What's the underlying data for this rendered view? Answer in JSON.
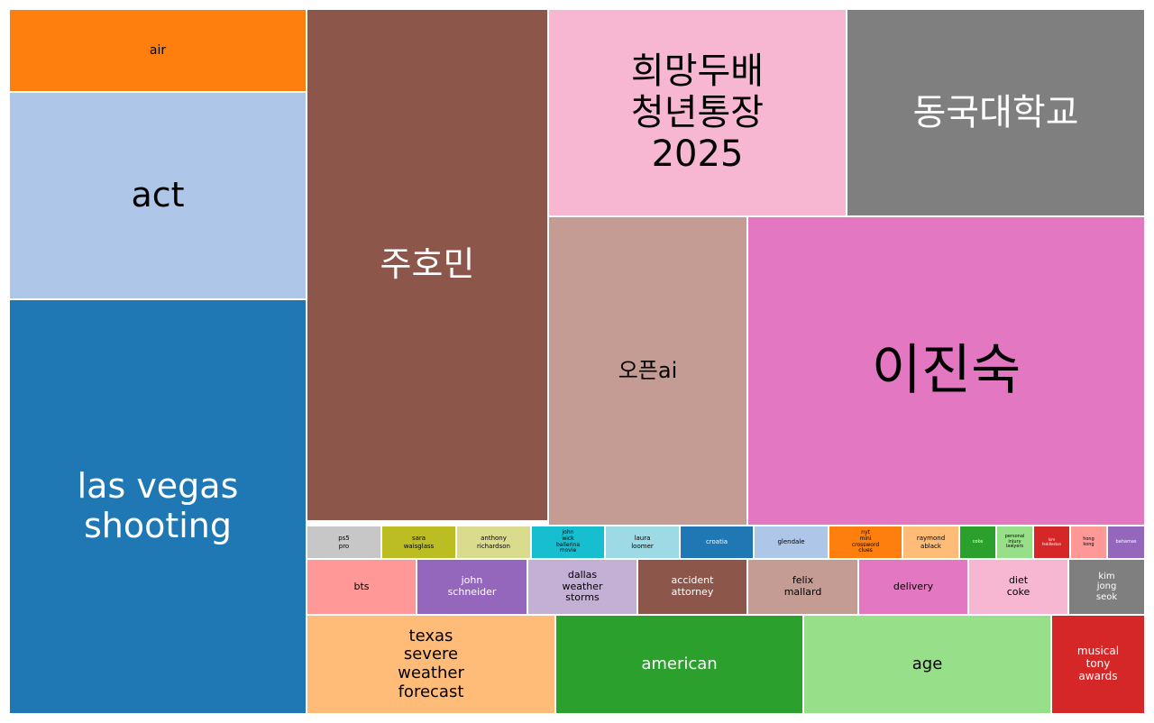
{
  "chart_data": {
    "type": "treemap",
    "title": "",
    "items": [
      {
        "label": "las vegas\nshooting",
        "value": 150.3,
        "color": "#1f77b4",
        "text_color": "#ffffff"
      },
      {
        "label": "act",
        "value": 75.4,
        "color": "#aec7e8",
        "text_color": "#000000"
      },
      {
        "label": "air",
        "value": 30.1,
        "color": "#ff7f0e",
        "text_color": "#000000"
      },
      {
        "label": "주호민",
        "value": 150.9,
        "color": "#8c564b",
        "text_color": "#ffffff"
      },
      {
        "label": "희망두배\n청년통장\n2025",
        "value": 75.9,
        "color": "#f7b6d2",
        "text_color": "#000000"
      },
      {
        "label": "동국대학교",
        "value": 75.6,
        "color": "#7f7f7f",
        "text_color": "#ffffff"
      },
      {
        "label": "오픈ai",
        "value": 75.1,
        "color": "#c49c94",
        "text_color": "#000000"
      },
      {
        "label": "이진숙",
        "value": 145.8,
        "color": "#e377c2",
        "text_color": "#000000"
      },
      {
        "label": "ps5\npro",
        "value": 2.8,
        "color": "#c7c7c7",
        "text_color": "#000000"
      },
      {
        "label": "sara\nwaisglass",
        "value": 2.8,
        "color": "#bcbd22",
        "text_color": "#000000"
      },
      {
        "label": "anthony\nrichardson",
        "value": 2.8,
        "color": "#dbdb8d",
        "text_color": "#000000"
      },
      {
        "label": "john\nwick\nballerina\nmovie",
        "value": 2.8,
        "color": "#17becf",
        "text_color": "#000000"
      },
      {
        "label": "laura\nloomer",
        "value": 2.8,
        "color": "#9edae5",
        "text_color": "#000000"
      },
      {
        "label": "croatia",
        "value": 2.8,
        "color": "#1f77b4",
        "text_color": "#ffffff"
      },
      {
        "label": "glendale",
        "value": 2.8,
        "color": "#aec7e8",
        "text_color": "#000000"
      },
      {
        "label": "nyt\nmini\ncrossword\nclues",
        "value": 2.8,
        "color": "#ff7f0e",
        "text_color": "#000000"
      },
      {
        "label": "raymond\nablack",
        "value": 2.1,
        "color": "#ffbb78",
        "text_color": "#000000"
      },
      {
        "label": "coke",
        "value": 1.4,
        "color": "#2ca02c",
        "text_color": "#ffffff"
      },
      {
        "label": "personal\ninjury\nlawyers",
        "value": 1.4,
        "color": "#98df8a",
        "text_color": "#000000"
      },
      {
        "label": "kim\nfeddleston",
        "value": 1.4,
        "color": "#d62728",
        "text_color": "#ffffff"
      },
      {
        "label": "hong\nkong",
        "value": 1.4,
        "color": "#ff9896",
        "text_color": "#000000"
      },
      {
        "label": "bahamas",
        "value": 1.4,
        "color": "#9467bd",
        "text_color": "#ffffff"
      },
      {
        "label": "bts",
        "value": 7.9,
        "color": "#ff9896",
        "text_color": "#000000"
      },
      {
        "label": "john\nschneider",
        "value": 7.9,
        "color": "#9467bd",
        "text_color": "#ffffff"
      },
      {
        "label": "dallas\nweather\nstorms",
        "value": 7.9,
        "color": "#c5b0d5",
        "text_color": "#000000"
      },
      {
        "label": "accident\nattorney",
        "value": 7.9,
        "color": "#8c564b",
        "text_color": "#ffffff"
      },
      {
        "label": "felix\nmallard",
        "value": 7.9,
        "color": "#c49c94",
        "text_color": "#000000"
      },
      {
        "label": "delivery",
        "value": 7.9,
        "color": "#e377c2",
        "text_color": "#000000"
      },
      {
        "label": "diet\ncoke",
        "value": 7.9,
        "color": "#f7b6d2",
        "text_color": "#000000"
      },
      {
        "label": "kim\njong\nseok",
        "value": 5.6,
        "color": "#7f7f7f",
        "text_color": "#ffffff"
      },
      {
        "label": "texas\nsevere\nweather\nforecast",
        "value": 20.2,
        "color": "#ffbb78",
        "text_color": "#000000"
      },
      {
        "label": "american",
        "value": 20.2,
        "color": "#2ca02c",
        "text_color": "#ffffff"
      },
      {
        "label": "age",
        "value": 20.2,
        "color": "#98df8a",
        "text_color": "#000000"
      },
      {
        "label": "musical\ntony\nawards",
        "value": 7.5,
        "color": "#d62728",
        "text_color": "#ffffff"
      }
    ]
  }
}
